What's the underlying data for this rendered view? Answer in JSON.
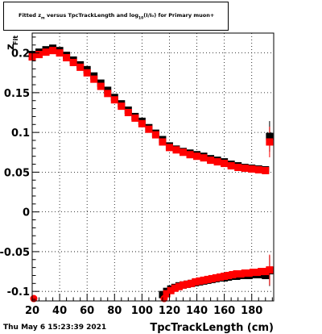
{
  "title": {
    "prefix": "Fitted  z",
    "sub1": "m",
    "middle": "  versus  TpcTrackLength and log",
    "sub2": "10",
    "suffix": "(I/I₀) for Primary muon+"
  },
  "timestamp": "Thu May  6 15:23:39 2021",
  "chart_data": {
    "type": "scatter",
    "title": "Fitted z_m versus TpcTrackLength and log10(I/I0) for Primary muon+",
    "xlabel": "TpcTrackLength (cm)",
    "ylabel": "z_Fit",
    "xlim": [
      20,
      196
    ],
    "ylim": [
      -0.112,
      0.225
    ],
    "grid": true,
    "xticks": [
      20,
      40,
      60,
      80,
      100,
      120,
      140,
      160,
      180
    ],
    "yticks": [
      -0.1,
      -0.05,
      0,
      0.05,
      0.1,
      0.15,
      0.2
    ],
    "ytick_labels": [
      "-0.1",
      "-0.05",
      "0",
      "0.05",
      "0.1",
      "0.15",
      "0.2"
    ],
    "series": [
      {
        "color": "#000000",
        "x": [
          20,
          25,
          30,
          35,
          40,
          45,
          50,
          55,
          60,
          65,
          70,
          75,
          80,
          85,
          90,
          95,
          100,
          105,
          110,
          115,
          120,
          125,
          130,
          135,
          140,
          145,
          150,
          155,
          160,
          165,
          170,
          175,
          180,
          185,
          190,
          193
        ],
        "y": [
          0.198,
          0.201,
          0.204,
          0.206,
          0.203,
          0.197,
          0.191,
          0.185,
          0.179,
          0.171,
          0.162,
          0.153,
          0.144,
          0.136,
          0.128,
          0.12,
          0.114,
          0.106,
          0.099,
          0.091,
          0.083,
          0.079,
          0.076,
          0.074,
          0.072,
          0.07,
          0.067,
          0.065,
          0.063,
          0.06,
          0.058,
          0.056,
          0.055,
          0.054,
          0.053,
          0.095
        ]
      },
      {
        "color": "#ff0000",
        "x": [
          20,
          25,
          30,
          35,
          40,
          45,
          50,
          55,
          60,
          65,
          70,
          75,
          80,
          85,
          90,
          95,
          100,
          105,
          110,
          115,
          120,
          125,
          130,
          135,
          140,
          145,
          150,
          155,
          160,
          165,
          170,
          175,
          180,
          185,
          190,
          193
        ],
        "y": [
          0.195,
          0.198,
          0.201,
          0.203,
          0.2,
          0.194,
          0.188,
          0.182,
          0.175,
          0.167,
          0.158,
          0.149,
          0.141,
          0.133,
          0.125,
          0.118,
          0.111,
          0.104,
          0.097,
          0.088,
          0.081,
          0.078,
          0.075,
          0.072,
          0.07,
          0.068,
          0.065,
          0.063,
          0.061,
          0.058,
          0.056,
          0.055,
          0.054,
          0.053,
          0.052,
          0.088
        ]
      },
      {
        "color": "#000000",
        "x": [
          115,
          118,
          121,
          124,
          127,
          130,
          133,
          136,
          139,
          142,
          145,
          148,
          151,
          154,
          157,
          160,
          163,
          166,
          169,
          172,
          175,
          178,
          181,
          184,
          187,
          190,
          193
        ],
        "y": [
          -0.104,
          -0.1,
          -0.097,
          -0.095,
          -0.093,
          -0.092,
          -0.091,
          -0.09,
          -0.089,
          -0.088,
          -0.087,
          -0.086,
          -0.085,
          -0.084,
          -0.083,
          -0.083,
          -0.082,
          -0.081,
          -0.081,
          -0.08,
          -0.08,
          -0.08,
          -0.079,
          -0.079,
          -0.079,
          -0.08,
          -0.074
        ]
      },
      {
        "color": "#ff0000",
        "x": [
          20,
          115,
          118,
          121,
          124,
          127,
          130,
          133,
          136,
          139,
          142,
          145,
          148,
          151,
          154,
          157,
          160,
          163,
          166,
          169,
          172,
          175,
          178,
          181,
          184,
          187,
          190,
          193
        ],
        "y": [
          -0.109,
          -0.109,
          -0.103,
          -0.099,
          -0.096,
          -0.094,
          -0.092,
          -0.091,
          -0.09,
          -0.088,
          -0.087,
          -0.086,
          -0.085,
          -0.084,
          -0.083,
          -0.082,
          -0.081,
          -0.08,
          -0.079,
          -0.078,
          -0.078,
          -0.077,
          -0.077,
          -0.076,
          -0.076,
          -0.075,
          -0.075,
          -0.073
        ]
      }
    ]
  }
}
